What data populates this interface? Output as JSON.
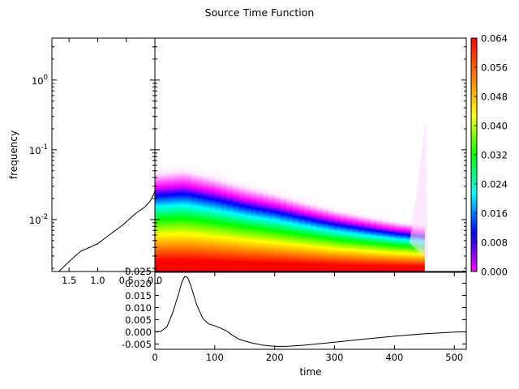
{
  "title": "Source Time Function",
  "colors": {
    "line": "#000000",
    "frame": "#000000",
    "background": "#ffffff"
  },
  "chart_data": [
    {
      "id": "spectrogram",
      "type": "heatmap",
      "title": "",
      "xlabel": "",
      "ylabel": "frequency",
      "y_scale": "log",
      "xlim": [
        0,
        520
      ],
      "ylim": [
        0.0018,
        4.0
      ],
      "y_ticks": [
        {
          "value": 0.01,
          "base": "10",
          "exp": "-2"
        },
        {
          "value": 0.1,
          "base": "10",
          "exp": "-1"
        },
        {
          "value": 1,
          "base": "10",
          "exp": "0"
        }
      ],
      "data_x_range": [
        0,
        450
      ],
      "peak_frequency_vs_time": [
        [
          0,
          0.018
        ],
        [
          50,
          0.019
        ],
        [
          100,
          0.016
        ],
        [
          150,
          0.013
        ],
        [
          200,
          0.011
        ],
        [
          250,
          0.009
        ],
        [
          300,
          0.0075
        ],
        [
          350,
          0.0065
        ],
        [
          400,
          0.0057
        ],
        [
          450,
          0.0052
        ]
      ],
      "colormap": "gist_rainbow_r"
    },
    {
      "id": "colorbar",
      "type": "colorbar",
      "range": [
        0.0,
        0.064
      ],
      "ticks": [
        "0.000",
        "0.008",
        "0.016",
        "0.024",
        "0.032",
        "0.040",
        "0.048",
        "0.056",
        "0.064"
      ],
      "colors": [
        "#ff00ff",
        "#0000ff",
        "#00ffff",
        "#00ff00",
        "#ffff00",
        "#ff8000",
        "#ff0000"
      ]
    },
    {
      "id": "spectrum",
      "type": "line",
      "x_scale": "linear",
      "x_inverted": true,
      "xlim": [
        1.8,
        0.0
      ],
      "ylim_log": [
        0.0018,
        4.0
      ],
      "x_ticks": [
        "1.5",
        "1.0",
        "0.5",
        "0.0"
      ],
      "points": [
        [
          1.68,
          0.0018
        ],
        [
          1.5,
          0.0025
        ],
        [
          1.3,
          0.0035
        ],
        [
          1.0,
          0.0045
        ],
        [
          0.8,
          0.006
        ],
        [
          0.55,
          0.0085
        ],
        [
          0.35,
          0.012
        ],
        [
          0.18,
          0.015
        ],
        [
          0.08,
          0.0185
        ],
        [
          0.02,
          0.023
        ],
        [
          0.0,
          0.026
        ]
      ]
    },
    {
      "id": "waveform",
      "type": "line",
      "xlabel": "time",
      "ylabel": "",
      "xlim": [
        0,
        520
      ],
      "ylim": [
        -0.0072,
        0.0245
      ],
      "x_ticks": [
        "0",
        "100",
        "200",
        "300",
        "400",
        "500"
      ],
      "y_ticks": [
        "0.025",
        "0.020",
        "0.015",
        "0.010",
        "0.005",
        "0.000",
        "-0.005"
      ],
      "points": [
        [
          0,
          0.0
        ],
        [
          10,
          0.0002
        ],
        [
          20,
          0.002
        ],
        [
          30,
          0.008
        ],
        [
          40,
          0.016
        ],
        [
          45,
          0.0205
        ],
        [
          50,
          0.0228
        ],
        [
          55,
          0.0222
        ],
        [
          60,
          0.019
        ],
        [
          70,
          0.011
        ],
        [
          80,
          0.0055
        ],
        [
          90,
          0.0032
        ],
        [
          100,
          0.0025
        ],
        [
          110,
          0.0015
        ],
        [
          120,
          0.0003
        ],
        [
          130,
          -0.0015
        ],
        [
          140,
          -0.003
        ],
        [
          160,
          -0.0045
        ],
        [
          180,
          -0.0055
        ],
        [
          200,
          -0.006
        ],
        [
          220,
          -0.006
        ],
        [
          250,
          -0.0055
        ],
        [
          300,
          -0.0043
        ],
        [
          350,
          -0.003
        ],
        [
          400,
          -0.0018
        ],
        [
          450,
          -0.0008
        ],
        [
          500,
          -0.0001
        ],
        [
          520,
          0.0
        ]
      ]
    }
  ]
}
